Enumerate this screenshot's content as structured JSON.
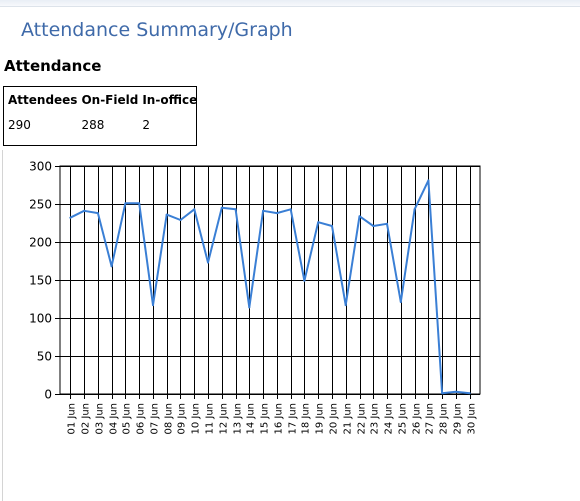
{
  "page": {
    "title": "Attendance Summary/Graph"
  },
  "section": {
    "title": "Attendance"
  },
  "summary": {
    "headers": [
      "Attendees",
      "On-Field",
      "In-office"
    ],
    "values": [
      "290",
      "288",
      "2"
    ]
  },
  "chart_data": {
    "type": "line",
    "title": "",
    "xlabel": "",
    "ylabel": "",
    "ylim": [
      0,
      300
    ],
    "yticks": [
      0,
      50,
      100,
      150,
      200,
      250,
      300
    ],
    "grid": true,
    "line_color": "#3a7fd5",
    "categories": [
      "01 Jun",
      "02 Jun",
      "03 Jun",
      "04 Jun",
      "05 Jun",
      "06 Jun",
      "07 Jun",
      "08 Jun",
      "09 Jun",
      "10 Jun",
      "11 Jun",
      "12 Jun",
      "13 Jun",
      "14 Jun",
      "15 Jun",
      "16 Jun",
      "17 Jun",
      "18 Jun",
      "19 Jun",
      "20 Jun",
      "21 Jun",
      "22 Jun",
      "23 Jun",
      "24 Jun",
      "25 Jun",
      "26 Jun",
      "27 Jun",
      "28 Jun",
      "29 Jun",
      "30 Jun"
    ],
    "values": [
      232,
      241,
      238,
      168,
      251,
      251,
      117,
      236,
      229,
      243,
      173,
      245,
      243,
      114,
      241,
      238,
      243,
      149,
      226,
      221,
      117,
      234,
      221,
      224,
      121,
      243,
      281,
      1,
      3,
      1
    ]
  }
}
